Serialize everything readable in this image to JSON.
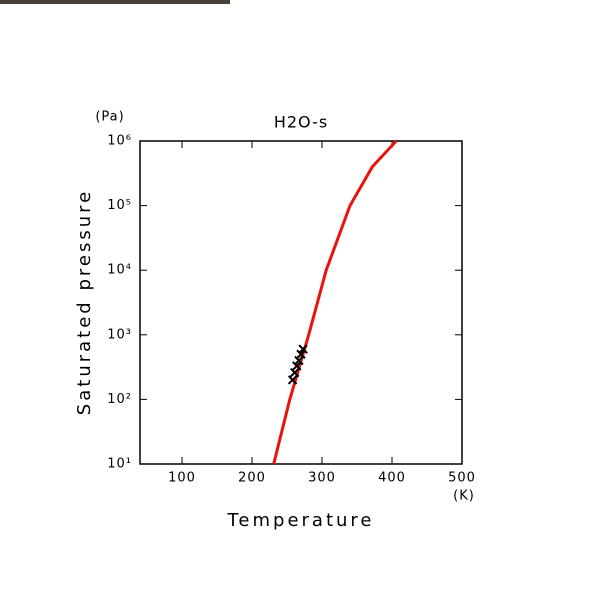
{
  "chart_data": {
    "type": "line",
    "title": "H2O-s",
    "xlabel": "Temperature",
    "ylabel": "Saturated pressure",
    "xunit": "(K)",
    "yunit": "(Pa)",
    "xlim": [
      40,
      500
    ],
    "ylim": [
      10,
      1000000
    ],
    "log_y": true,
    "xticks": [
      100,
      200,
      300,
      400,
      500
    ],
    "yticks": [
      {
        "value": 10,
        "label": "10¹"
      },
      {
        "value": 100,
        "label": "10²"
      },
      {
        "value": 1000,
        "label": "10³"
      },
      {
        "value": 10000,
        "label": "10⁴"
      },
      {
        "value": 100000,
        "label": "10⁵"
      },
      {
        "value": 1000000,
        "label": "10⁶"
      }
    ],
    "series": [
      {
        "kind": "line",
        "color": "#e8140c",
        "x": [
          231,
          254,
          281,
          306,
          340,
          372,
          406
        ],
        "values": [
          10,
          100,
          1000,
          10000,
          100000,
          400000,
          1000000
        ]
      },
      {
        "kind": "scatter",
        "color": "#000000",
        "x": [
          258,
          261,
          264,
          267,
          270,
          273
        ],
        "values": [
          200,
          260,
          330,
          400,
          500,
          600
        ]
      }
    ]
  }
}
